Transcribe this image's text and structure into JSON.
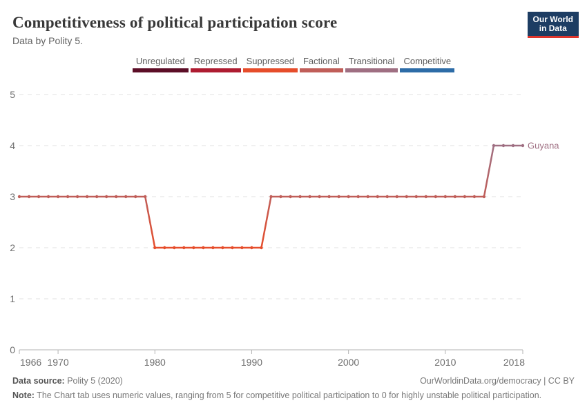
{
  "header": {
    "title": "Competitiveness of political participation score",
    "subtitle": "Data by Polity 5.",
    "logo_line1": "Our World",
    "logo_line2": "in Data",
    "logo_bg": "#1D3D63",
    "logo_accent": "#DE352C"
  },
  "legend": {
    "items": [
      {
        "label": "Unregulated",
        "color": "#5C0E27"
      },
      {
        "label": "Repressed",
        "color": "#AE1C31"
      },
      {
        "label": "Suppressed",
        "color": "#E64D2B"
      },
      {
        "label": "Factional",
        "color": "#C05E59"
      },
      {
        "label": "Transitional",
        "color": "#9F6F82"
      },
      {
        "label": "Competitive",
        "color": "#2D6CA7"
      }
    ]
  },
  "chart_data": {
    "type": "line",
    "title": "Competitiveness of political participation score",
    "xlabel": "",
    "ylabel": "",
    "xlim": [
      1966,
      2018
    ],
    "ylim": [
      0,
      5
    ],
    "x_ticks": [
      1966,
      1970,
      1980,
      1990,
      2000,
      2010,
      2018
    ],
    "y_ticks": [
      0,
      1,
      2,
      3,
      4,
      5
    ],
    "grid": "dashed-horizontal",
    "legend_position": "top-center",
    "value_labels": {
      "0": "Unregulated",
      "1": "Repressed",
      "2": "Suppressed",
      "3": "Factional",
      "4": "Transitional",
      "5": "Competitive"
    },
    "value_colors": {
      "0": "#5C0E27",
      "1": "#AE1C31",
      "2": "#E64D2B",
      "3": "#C05E59",
      "4": "#9F6F82",
      "5": "#2D6CA7"
    },
    "series": [
      {
        "name": "Guyana",
        "x_start": 1966,
        "values": [
          3,
          3,
          3,
          3,
          3,
          3,
          3,
          3,
          3,
          3,
          3,
          3,
          3,
          3,
          2,
          2,
          2,
          2,
          2,
          2,
          2,
          2,
          2,
          2,
          2,
          2,
          3,
          3,
          3,
          3,
          3,
          3,
          3,
          3,
          3,
          3,
          3,
          3,
          3,
          3,
          3,
          3,
          3,
          3,
          3,
          3,
          3,
          3,
          3,
          4,
          4,
          4,
          4
        ]
      }
    ]
  },
  "footer": {
    "source_label": "Data source:",
    "source_value": "Polity 5 (2020)",
    "attribution": "OurWorldinData.org/democracy | CC BY",
    "note_label": "Note:",
    "note_value": "The Chart tab uses numeric values, ranging from 5 for competitive political participation to 0 for highly unstable political participation."
  }
}
